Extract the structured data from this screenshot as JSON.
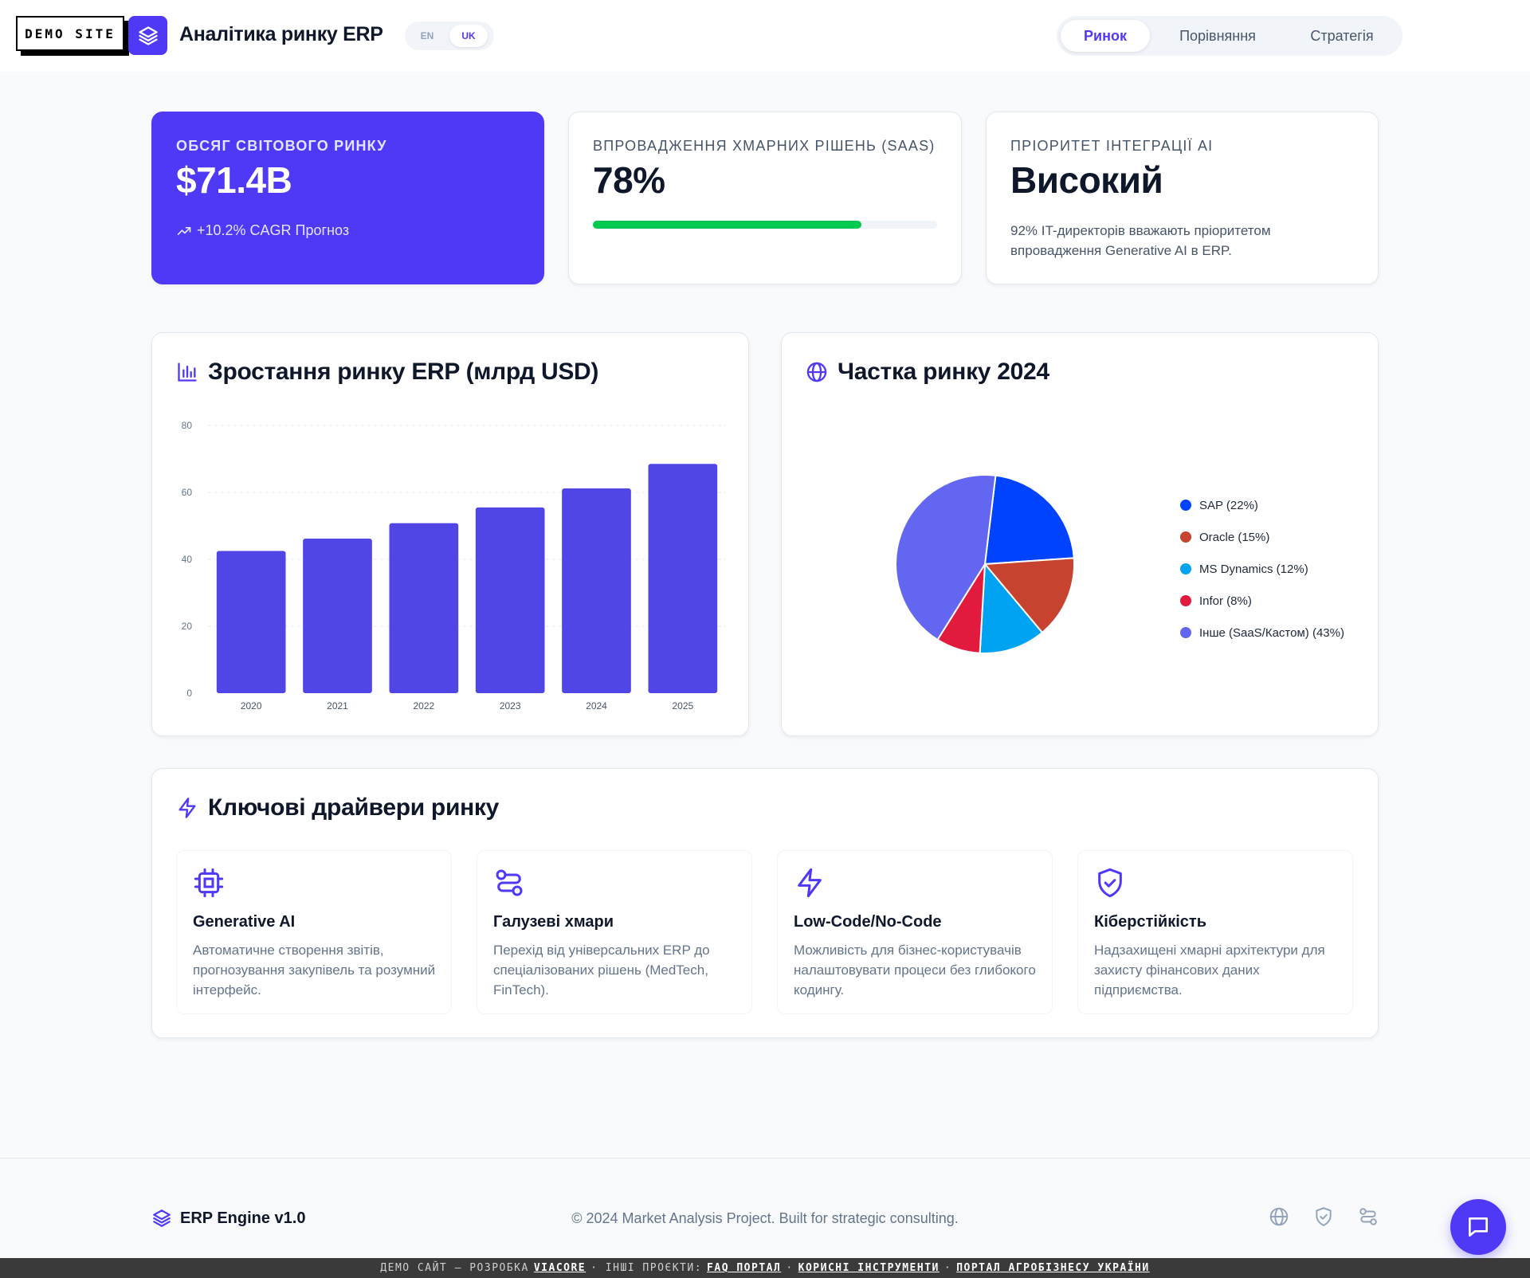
{
  "header": {
    "demo_badge": "DEMO SITE",
    "app_title": "Аналітика ринку ERP",
    "languages": [
      {
        "label": "EN"
      },
      {
        "label": "UK"
      }
    ],
    "active_language": "UK",
    "tabs": [
      {
        "label": "Ринок"
      },
      {
        "label": "Порівняння"
      },
      {
        "label": "Стратегія"
      }
    ],
    "active_tab": "Ринок"
  },
  "stats": {
    "market_size": {
      "label": "Обсяг світового ринку",
      "value": "$71.4B",
      "sub": "+10.2% CAGR Прогноз"
    },
    "cloud": {
      "label": "Впровадження хмарних рішень (SaaS)",
      "value": "78%",
      "progress": 0.78
    },
    "ai": {
      "label": "Пріоритет інтеграції AI",
      "value": "Високий",
      "desc": "92% IT-директорів вважають пріоритетом впровадження Generative AI в ERP."
    }
  },
  "growth_panel": {
    "title": "Зростання ринку ERP (млрд USD)"
  },
  "share_panel": {
    "title": "Частка ринку 2024"
  },
  "chart_data": [
    {
      "type": "bar",
      "title": "Зростання ринку ERP (млрд USD)",
      "categories": [
        "2020",
        "2021",
        "2022",
        "2023",
        "2024",
        "2025"
      ],
      "values": [
        42.5,
        46.2,
        50.8,
        55.5,
        61.2,
        68.5
      ],
      "ylim": [
        0,
        80
      ],
      "yticks": [
        0,
        20,
        40,
        60,
        80
      ],
      "grid": true,
      "color": "#4f46e5"
    },
    {
      "type": "pie",
      "title": "Частка ринку 2024",
      "slices": [
        {
          "label": "SAP (22%)",
          "value": 22,
          "color": "#0043ff"
        },
        {
          "label": "Oracle (15%)",
          "value": 15,
          "color": "#c7432f"
        },
        {
          "label": "MS Dynamics (12%)",
          "value": 12,
          "color": "#00a2f2"
        },
        {
          "label": "Infor (8%)",
          "value": 8,
          "color": "#e21a3e"
        },
        {
          "label": "Інше (SaaS/Кастом) (43%)",
          "value": 43,
          "color": "#6366f1"
        }
      ],
      "legend": "right"
    }
  ],
  "drivers": {
    "title": "Ключові драйвери ринку",
    "items": [
      {
        "icon": "chip-icon",
        "title": "Generative AI",
        "desc": "Автоматичне створення звітів, прогнозування закупівель та розумний інтерфейс."
      },
      {
        "icon": "route-icon",
        "title": "Галузеві хмари",
        "desc": "Перехід від універсальних ERP до спеціалізованих рішень (MedTech, FinTech)."
      },
      {
        "icon": "lightning-icon",
        "title": "Low-Code/No-Code",
        "desc": "Можливість для бізнес-користувачів налаштовувати процеси без глибокого кодингу."
      },
      {
        "icon": "shield-check-icon",
        "title": "Кіберстійкість",
        "desc": "Надзахищені хмарні архітектури для захисту фінансових даних підприємства."
      }
    ]
  },
  "footer": {
    "brand": "ERP Engine v1.0",
    "copyright": "© 2024 Market Analysis Project. Built for strategic consulting."
  },
  "bottom_bar": {
    "prefix": "Демо сайт — розробка",
    "viacore": "VIACORE",
    "others": "· Інші проєкти:",
    "links": [
      "FAQ портал",
      "Корисні інструменти",
      "Портал агробізнесу України"
    ]
  },
  "colors": {
    "accent": "#4f39f6",
    "progress": "#00c950",
    "bar": "#4f46e5"
  }
}
